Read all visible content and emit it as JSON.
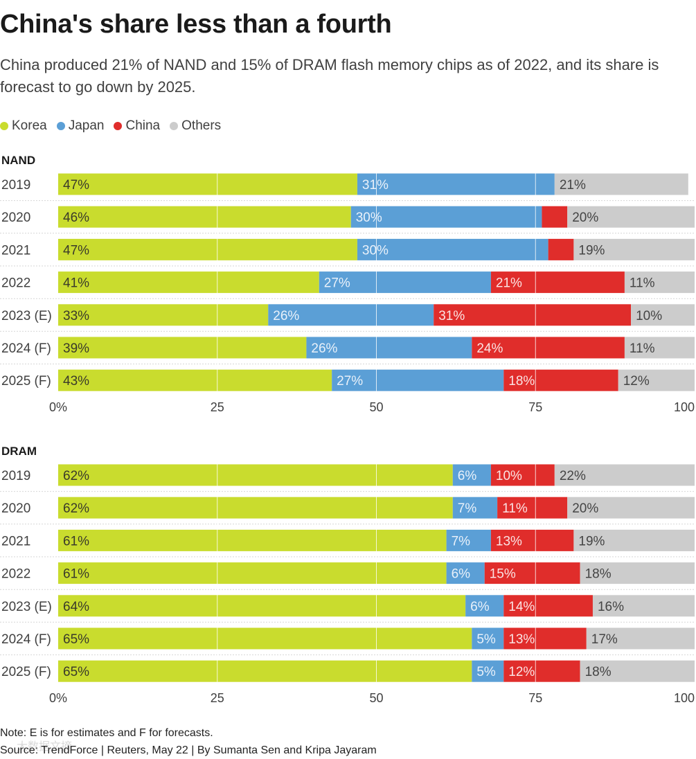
{
  "title": "China's share less than a fourth",
  "subtitle": "China produced 21% of NAND and 15% of DRAM flash memory chips as of 2022, and its share is forecast to go down by 2025.",
  "legend": [
    {
      "name": "Korea",
      "color": "#c9dc2e"
    },
    {
      "name": "Japan",
      "color": "#5b9fd6"
    },
    {
      "name": "China",
      "color": "#e02d2b"
    },
    {
      "name": "Others",
      "color": "#cccccc"
    }
  ],
  "chart_data": [
    {
      "type": "bar",
      "orientation": "horizontal-stacked",
      "title": "NAND",
      "categories": [
        "2019",
        "2020",
        "2021",
        "2022",
        "2023 (E)",
        "2024 (F)",
        "2025 (F)"
      ],
      "series": [
        {
          "name": "Korea",
          "values": [
            47,
            46,
            47,
            41,
            33,
            39,
            43
          ],
          "labels": [
            "47%",
            "46%",
            "47%",
            "41%",
            "33%",
            "39%",
            "43%"
          ]
        },
        {
          "name": "Japan",
          "values": [
            31,
            30,
            30,
            27,
            26,
            26,
            27
          ],
          "labels": [
            "31%",
            "30%",
            "30%",
            "27%",
            "26%",
            "26%",
            "27%"
          ]
        },
        {
          "name": "China",
          "values": [
            0,
            4,
            4,
            21,
            31,
            24,
            18
          ],
          "labels": [
            "",
            "",
            "",
            "21%",
            "31%",
            "24%",
            "18%"
          ]
        },
        {
          "name": "Others",
          "values": [
            21,
            20,
            19,
            11,
            10,
            11,
            12
          ],
          "labels": [
            "21%",
            "20%",
            "19%",
            "11%",
            "10%",
            "11%",
            "12%"
          ]
        }
      ],
      "xlim": [
        0,
        100
      ],
      "ticks": [
        "0%",
        "25",
        "50",
        "75",
        "100"
      ]
    },
    {
      "type": "bar",
      "orientation": "horizontal-stacked",
      "title": "DRAM",
      "categories": [
        "2019",
        "2020",
        "2021",
        "2022",
        "2023 (E)",
        "2024 (F)",
        "2025 (F)"
      ],
      "series": [
        {
          "name": "Korea",
          "values": [
            62,
            62,
            61,
            61,
            64,
            65,
            65
          ],
          "labels": [
            "62%",
            "62%",
            "61%",
            "61%",
            "64%",
            "65%",
            "65%"
          ]
        },
        {
          "name": "Japan",
          "values": [
            6,
            7,
            7,
            6,
            6,
            5,
            5
          ],
          "labels": [
            "6%",
            "7%",
            "7%",
            "6%",
            "6%",
            "5%",
            "5%"
          ]
        },
        {
          "name": "China",
          "values": [
            10,
            11,
            13,
            15,
            14,
            13,
            12
          ],
          "labels": [
            "10%",
            "11%",
            "13%",
            "15%",
            "14%",
            "13%",
            "12%"
          ]
        },
        {
          "name": "Others",
          "values": [
            22,
            20,
            19,
            18,
            16,
            17,
            18
          ],
          "labels": [
            "22%",
            "20%",
            "19%",
            "18%",
            "16%",
            "17%",
            "18%"
          ]
        }
      ],
      "xlim": [
        0,
        100
      ],
      "ticks": [
        "0%",
        "25",
        "50",
        "75",
        "100"
      ]
    }
  ],
  "note": "Note: E is for estimates and F for forecasts.",
  "source": "Source: TrendForce | Reuters, May 22 | By Sumanta Sen and Kripa Jayaram",
  "watermark": "大数据文摘"
}
